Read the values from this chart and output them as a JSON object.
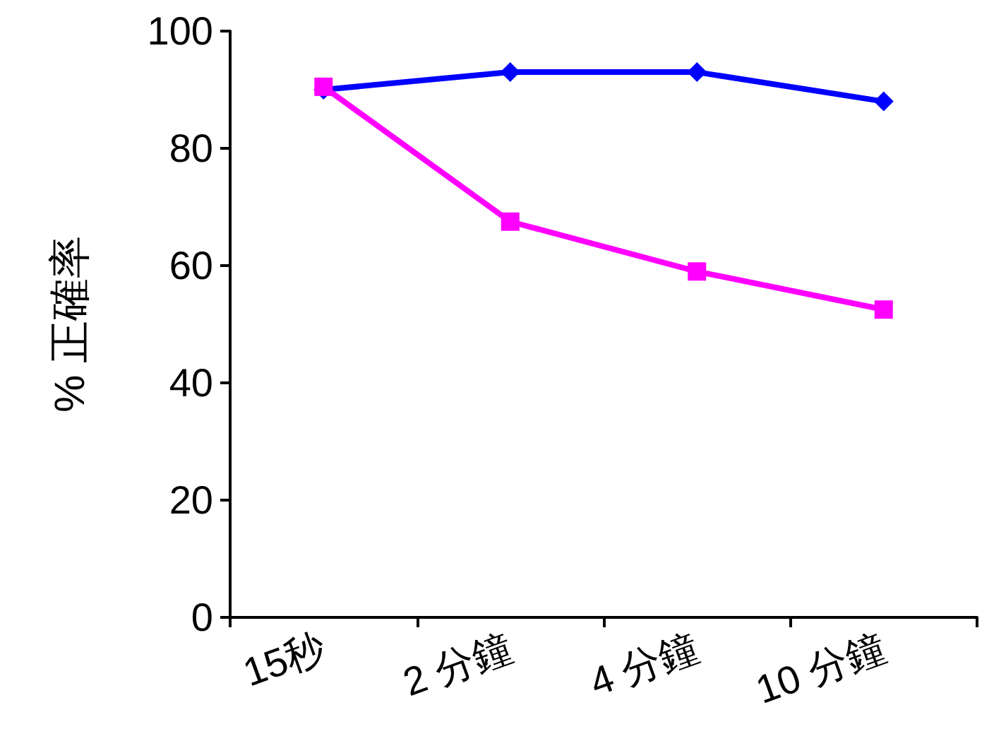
{
  "chart_data": {
    "type": "line",
    "ylabel": "% 正確率",
    "categories": [
      "15秒",
      "2 分鐘",
      "4 分鐘",
      "10 分鐘"
    ],
    "series": [
      {
        "color": "#0000ff",
        "marker": "diamond",
        "values": [
          90,
          93,
          93,
          88
        ]
      },
      {
        "color": "#ff00ff",
        "marker": "square",
        "values": [
          90.5,
          67.5,
          59,
          52.5
        ]
      }
    ],
    "ylim": [
      0,
      100
    ],
    "yticks": [
      0,
      20,
      40,
      60,
      80,
      100
    ],
    "grid": false,
    "line_style": "solid"
  }
}
